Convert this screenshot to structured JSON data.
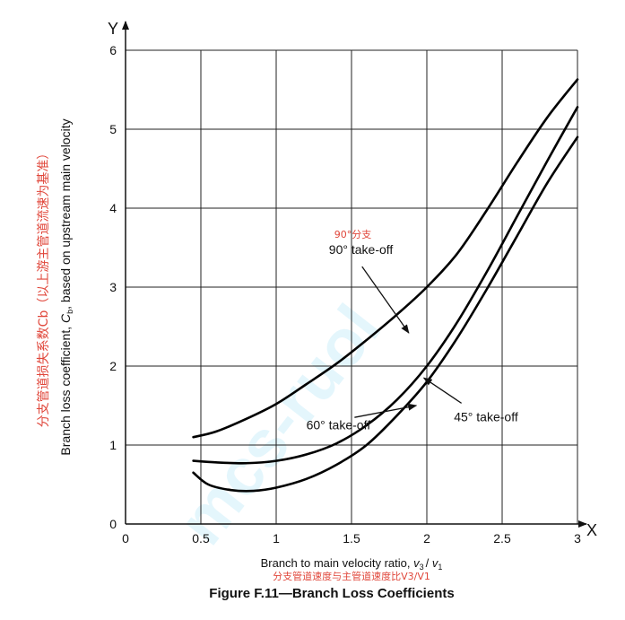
{
  "chart_data": {
    "type": "line",
    "xlim": [
      0,
      3
    ],
    "ylim": [
      0,
      6
    ],
    "x_ticks": [
      "0",
      "0.5",
      "1",
      "1.5",
      "2",
      "2.5",
      "3"
    ],
    "y_ticks": [
      "0",
      "1",
      "2",
      "3",
      "4",
      "5",
      "6"
    ],
    "x_axis_letter": "X",
    "y_axis_letter": "Y",
    "grid": true,
    "xlabel": {
      "en_prefix": "Branch to main velocity ratio, ",
      "v3": "v",
      "v3_sub": "3",
      "slash": "/ ",
      "v1": "v",
      "v1_sub": "1",
      "cn": "分支管道速度与主管道速度比V3/V1"
    },
    "ylabel": {
      "en_prefix": "Branch loss coefficient, ",
      "c": "C",
      "c_sub": "b",
      "en_suffix": ", based on upstream main velocity",
      "cn": "分支管道损失系数Cb（以上游主管道流速为基准）"
    },
    "series": [
      {
        "name": "90° take-off",
        "x": [
          0.45,
          0.6,
          0.8,
          1.0,
          1.2,
          1.4,
          1.6,
          1.8,
          2.0,
          2.2,
          2.4,
          2.6,
          2.8,
          3.0
        ],
        "y": [
          1.1,
          1.17,
          1.33,
          1.52,
          1.77,
          2.03,
          2.33,
          2.65,
          3.0,
          3.42,
          3.98,
          4.58,
          5.15,
          5.63
        ]
      },
      {
        "name": "60° take-off",
        "x": [
          0.45,
          0.6,
          0.8,
          1.0,
          1.2,
          1.4,
          1.6,
          1.8,
          2.0,
          2.2,
          2.4,
          2.6,
          2.8,
          3.0
        ],
        "y": [
          0.8,
          0.78,
          0.77,
          0.8,
          0.88,
          1.02,
          1.25,
          1.57,
          2.0,
          2.55,
          3.2,
          3.9,
          4.6,
          5.28
        ]
      },
      {
        "name": "45° take-off",
        "x": [
          0.45,
          0.55,
          0.7,
          0.85,
          1.0,
          1.2,
          1.4,
          1.6,
          1.8,
          2.0,
          2.2,
          2.4,
          2.6,
          2.8,
          3.0
        ],
        "y": [
          0.65,
          0.5,
          0.43,
          0.42,
          0.46,
          0.57,
          0.75,
          1.0,
          1.37,
          1.8,
          2.35,
          2.98,
          3.65,
          4.32,
          4.9
        ]
      }
    ],
    "annotations": [
      {
        "text": "90° take-off",
        "cn": "90°分支",
        "arrow_from": [
          1.57,
          3.26
        ],
        "arrow_to": [
          1.88,
          2.42
        ],
        "text_at": [
          1.35,
          3.42
        ]
      },
      {
        "text": "60° take-off",
        "cn": "",
        "arrow_from": [
          1.52,
          1.35
        ],
        "arrow_to": [
          1.93,
          1.5
        ],
        "text_at": [
          1.2,
          1.2
        ]
      },
      {
        "text": "45° take-off",
        "cn": "",
        "arrow_from": [
          2.23,
          1.53
        ],
        "arrow_to": [
          1.98,
          1.85
        ],
        "text_at": [
          2.18,
          1.3
        ]
      }
    ]
  },
  "caption": "Figure  F.11—Branch Loss Coefficients",
  "watermark": "mcs-ruol",
  "colors": {
    "cn_text": "#e0463a",
    "grid": "#222222",
    "curve": "#000000",
    "watermark": "#27b8ec"
  }
}
